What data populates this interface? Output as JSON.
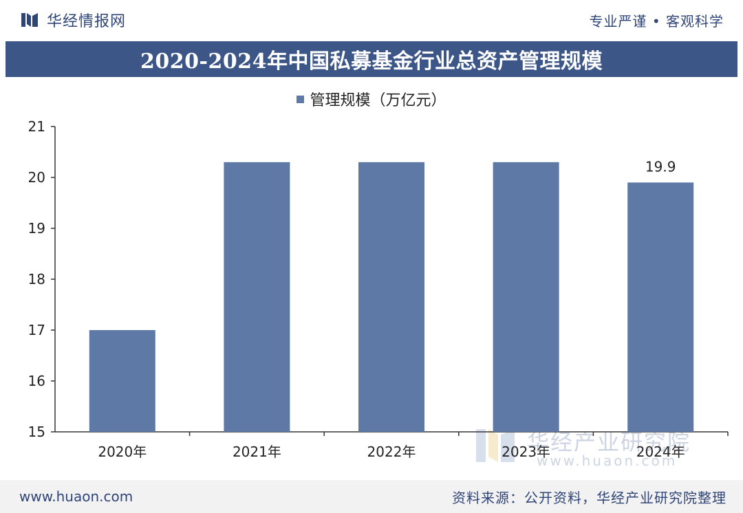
{
  "header": {
    "brand_name": "华经情报网",
    "slogan": "专业严谨 • 客观科学"
  },
  "title_bar": {
    "title": "2020-2024年中国私募基金行业总资产管理规模"
  },
  "footer": {
    "site": "www.huaon.com",
    "source": "资料来源：公开资料，华经产业研究院整理"
  },
  "watermark": {
    "name": "华经产业研究院",
    "site": "www.huaon.com"
  },
  "colors": {
    "bar": "#5f79a6",
    "title_bg": "#3d5688",
    "brand": "#2f4477"
  },
  "chart_data": {
    "type": "bar",
    "title": "2020-2024年中国私募基金行业总资产管理规模",
    "categories": [
      "2020年",
      "2021年",
      "2022年",
      "2023年",
      "2024年"
    ],
    "series": [
      {
        "name": "管理规模（万亿元）",
        "values": [
          17.0,
          20.3,
          20.3,
          20.3,
          19.9
        ]
      }
    ],
    "data_labels": [
      null,
      null,
      null,
      null,
      "19.9"
    ],
    "ylim": [
      15,
      21
    ],
    "yticks": [
      15,
      16,
      17,
      18,
      19,
      20,
      21
    ],
    "xlabel": "",
    "ylabel": "",
    "grid": false,
    "legend_position": "top-center"
  }
}
